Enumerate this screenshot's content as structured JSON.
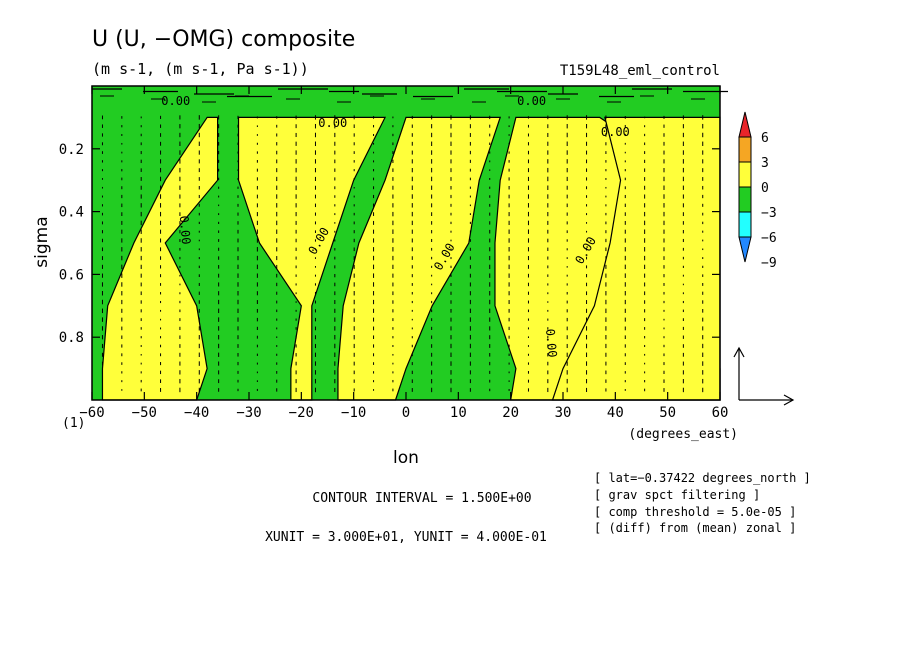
{
  "chart_data": {
    "type": "heatmap",
    "title": "U (U, −OMG) composite",
    "subtitle": "(m s-1, (m s-1, Pa s-1))",
    "run_label": "T159L48_eml_control",
    "xlabel": "lon",
    "x_unit_label": "(degrees_east)",
    "ylabel": "sigma",
    "corner_label": "(1)",
    "xlim": [
      -60,
      60
    ],
    "ylim": [
      1.0,
      0.0
    ],
    "x_ticks": [
      -60,
      -50,
      -40,
      -30,
      -20,
      -10,
      0,
      10,
      20,
      30,
      40,
      50,
      60
    ],
    "y_ticks": [
      0.2,
      0.4,
      0.6,
      0.8
    ],
    "colorbar": {
      "labels": [
        "6",
        "3",
        "0",
        "−3",
        "−6",
        "−9"
      ],
      "colors": [
        "#e8242a",
        "#f5a623",
        "#ffff3a",
        "#22cc22",
        "#22ffff",
        "#2288ff"
      ]
    },
    "contour_label": "0.00",
    "contour_interval_text": "CONTOUR INTERVAL = 1.500E+00",
    "unit_text": "XUNIT = 3.000E+01, YUNIT = 4.000E-01",
    "notes": [
      "[ lat=−0.37422 degrees_north ]",
      "[ grav spct filtering ]",
      "[ comp threshold = 5.0e-05 ]",
      "[ (diff) from (mean) zonal ]"
    ],
    "positive_regions": [
      {
        "sigma": [
          0.1,
          0.3,
          0.5,
          0.7,
          0.9,
          1.0
        ],
        "lon_from": [
          -38,
          -46,
          -52,
          -57,
          -58,
          -58
        ],
        "lon_to": [
          -36,
          -36,
          -46,
          -40,
          -38,
          -40
        ]
      },
      {
        "sigma": [
          0.1,
          0.3,
          0.5,
          0.7,
          0.9,
          1.0
        ],
        "lon_from": [
          -32,
          -32,
          -28,
          -20,
          -22,
          -22
        ],
        "lon_to": [
          -4,
          -10,
          -14,
          -18,
          -18,
          -18
        ]
      },
      {
        "sigma": [
          0.1,
          0.3,
          0.5,
          0.7,
          0.9,
          1.0
        ],
        "lon_from": [
          0,
          -4,
          -9,
          -12,
          -13,
          -13
        ],
        "lon_to": [
          18,
          14,
          12,
          5,
          0,
          -2
        ]
      },
      {
        "sigma": [
          0.1,
          0.3,
          0.5,
          0.7,
          0.9,
          1.0
        ],
        "lon_from": [
          21,
          18,
          17,
          17,
          21,
          20
        ],
        "lon_to": [
          37,
          55,
          56,
          58,
          60,
          60
        ]
      },
      {
        "sigma": [
          0.1,
          0.3,
          0.5,
          0.7,
          0.9,
          1.0
        ],
        "lon_from": [
          38,
          41,
          39,
          36,
          30,
          28
        ],
        "lon_to": [
          60,
          60,
          60,
          60,
          60,
          60
        ]
      }
    ]
  }
}
